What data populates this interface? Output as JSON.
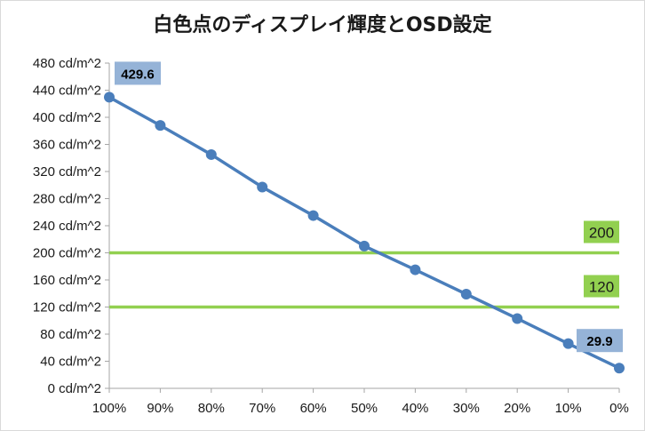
{
  "chart_data": {
    "type": "line",
    "title": "白色点のディスプレイ輝度とOSD設定",
    "xlabel": "",
    "ylabel": "",
    "categories": [
      "100%",
      "90%",
      "80%",
      "70%",
      "60%",
      "50%",
      "40%",
      "30%",
      "20%",
      "10%",
      "0%"
    ],
    "y_tick_labels": [
      "0 cd/m^2",
      "40 cd/m^2",
      "80 cd/m^2",
      "120 cd/m^2",
      "160 cd/m^2",
      "200 cd/m^2",
      "240 cd/m^2",
      "280 cd/m^2",
      "320 cd/m^2",
      "360 cd/m^2",
      "400 cd/m^2",
      "440 cd/m^2",
      "480 cd/m^2"
    ],
    "ylim": [
      0,
      480
    ],
    "series": [
      {
        "values": [
          429.6,
          388,
          345,
          297,
          255,
          210,
          175,
          139,
          103,
          66,
          29.9
        ],
        "color": "#4a7ebb"
      }
    ],
    "data_labels": [
      {
        "index": 0,
        "text": "429.6"
      },
      {
        "index": 10,
        "text": "29.9"
      }
    ],
    "reference_lines": [
      {
        "value": 200,
        "label": "200",
        "color": "#92d050"
      },
      {
        "value": 120,
        "label": "120",
        "color": "#92d050"
      }
    ],
    "label_box_color": "#95b3d7",
    "grid": false,
    "legend": "none"
  }
}
